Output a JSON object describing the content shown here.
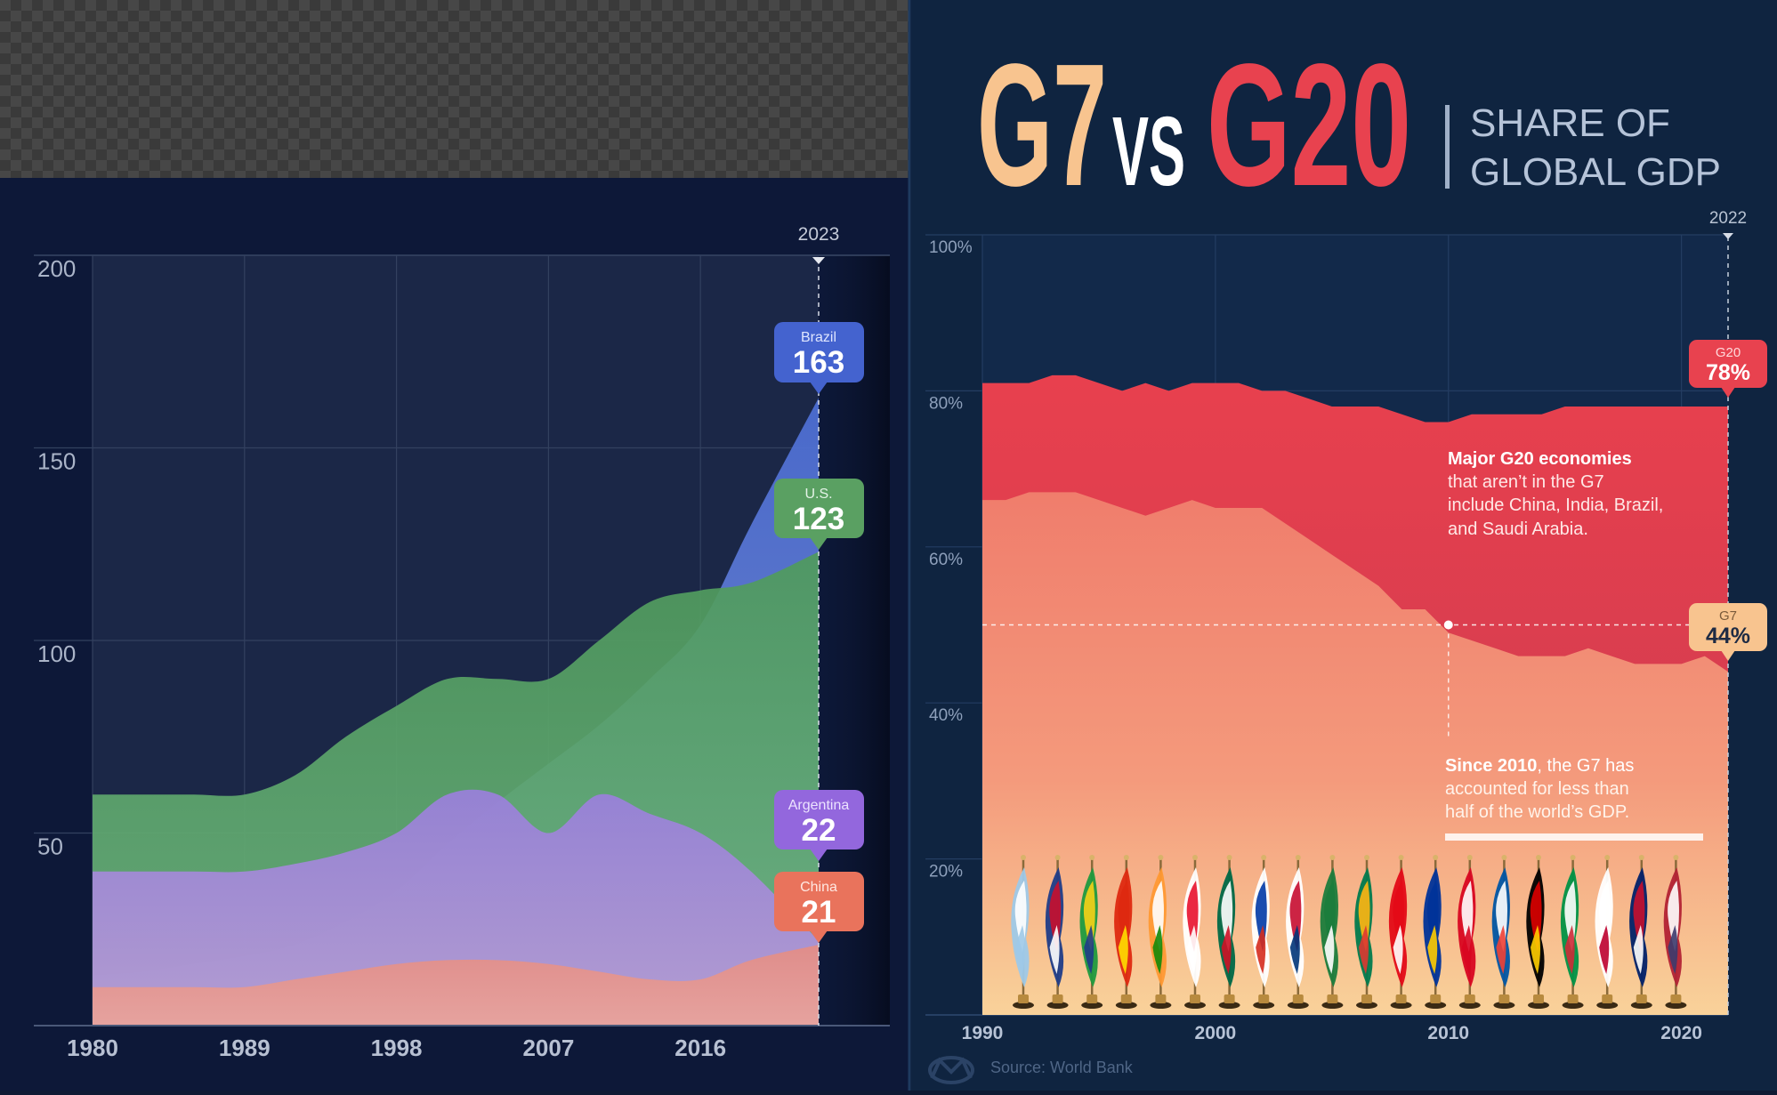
{
  "left_chart": {
    "marker_label": "2023",
    "callouts": {
      "brazil": {
        "name": "Brazil",
        "value": "163"
      },
      "us": {
        "name": "U.S.",
        "value": "123"
      },
      "argentina": {
        "name": "Argentina",
        "value": "22"
      },
      "china": {
        "name": "China",
        "value": "21"
      }
    }
  },
  "right_chart": {
    "title_g7": "G7",
    "title_vs": "VS",
    "title_g20": "G20",
    "subtitle_line1": "SHARE OF",
    "subtitle_line2": "GLOBAL GDP",
    "marker_label": "2022",
    "callout_g20": {
      "name": "G20",
      "value": "78%"
    },
    "callout_g7": {
      "name": "G7",
      "value": "44%"
    },
    "annotation1": {
      "bold": "Major G20 economies",
      "line2": "that aren’t in the G7",
      "line3": "include China, India, Brazil,",
      "line4": "and Saudi Arabia."
    },
    "annotation2": {
      "bold": "Since 2010",
      "line1_rest": ", the G7 has",
      "line2": "accounted for less than",
      "line3": "half of the world’s GDP."
    },
    "source": "Source: World Bank"
  },
  "colors": {
    "brazil": "#4a6fd1",
    "us": "#5fa96a",
    "argentina": "#9b7de0",
    "china": "#e9735c",
    "g20": "#e0424f",
    "g7": "#f39176",
    "navy": "#0f1a33"
  },
  "chart_data": [
    {
      "type": "area",
      "x": [
        1980,
        1983,
        1986,
        1989,
        1992,
        1995,
        1998,
        2001,
        2004,
        2007,
        2010,
        2013,
        2016,
        2019,
        2023
      ],
      "xticks": [
        "1980",
        "1989",
        "1998",
        "2007",
        "2016"
      ],
      "yticks": [
        "50",
        "100",
        "150",
        "200"
      ],
      "ylim": [
        0,
        200
      ],
      "xlim": [
        1980,
        2023
      ],
      "series": [
        {
          "name": "Brazil",
          "values": [
            13,
            14,
            16,
            18,
            21,
            27,
            35,
            47,
            58,
            68,
            78,
            90,
            104,
            130,
            163
          ]
        },
        {
          "name": "U.S.",
          "values": [
            60,
            60,
            60,
            60,
            65,
            75,
            83,
            90,
            90,
            90,
            100,
            110,
            113,
            115,
            123
          ]
        },
        {
          "name": "Argentina",
          "values": [
            40,
            40,
            40,
            40,
            42,
            45,
            50,
            60,
            60,
            50,
            60,
            55,
            50,
            40,
            22
          ]
        },
        {
          "name": "China",
          "values": [
            10,
            10,
            10,
            10,
            12,
            14,
            16,
            17,
            17,
            16,
            14,
            12,
            12,
            17,
            21
          ]
        }
      ]
    },
    {
      "type": "area",
      "x": [
        1990,
        1991,
        1992,
        1993,
        1994,
        1995,
        1996,
        1997,
        1998,
        1999,
        2000,
        2001,
        2002,
        2003,
        2004,
        2005,
        2006,
        2007,
        2008,
        2009,
        2010,
        2011,
        2012,
        2013,
        2014,
        2015,
        2016,
        2017,
        2018,
        2019,
        2020,
        2021,
        2022
      ],
      "xticks": [
        "1990",
        "2000",
        "2010",
        "2020"
      ],
      "yticks": [
        "20%",
        "40%",
        "60%",
        "80%",
        "100%"
      ],
      "ylim": [
        0,
        100
      ],
      "xlim": [
        1990,
        2022
      ],
      "series": [
        {
          "name": "G20",
          "values": [
            81,
            81,
            81,
            82,
            82,
            81,
            80,
            81,
            80,
            81,
            81,
            81,
            80,
            80,
            79,
            78,
            78,
            78,
            77,
            76,
            76,
            77,
            77,
            77,
            77,
            78,
            78,
            78,
            78,
            78,
            78,
            78,
            78
          ]
        },
        {
          "name": "G7",
          "values": [
            66,
            66,
            67,
            67,
            67,
            66,
            65,
            64,
            65,
            66,
            65,
            65,
            65,
            63,
            61,
            59,
            57,
            55,
            52,
            52,
            49,
            48,
            47,
            46,
            46,
            46,
            47,
            46,
            45,
            45,
            45,
            46,
            44
          ]
        }
      ]
    }
  ]
}
